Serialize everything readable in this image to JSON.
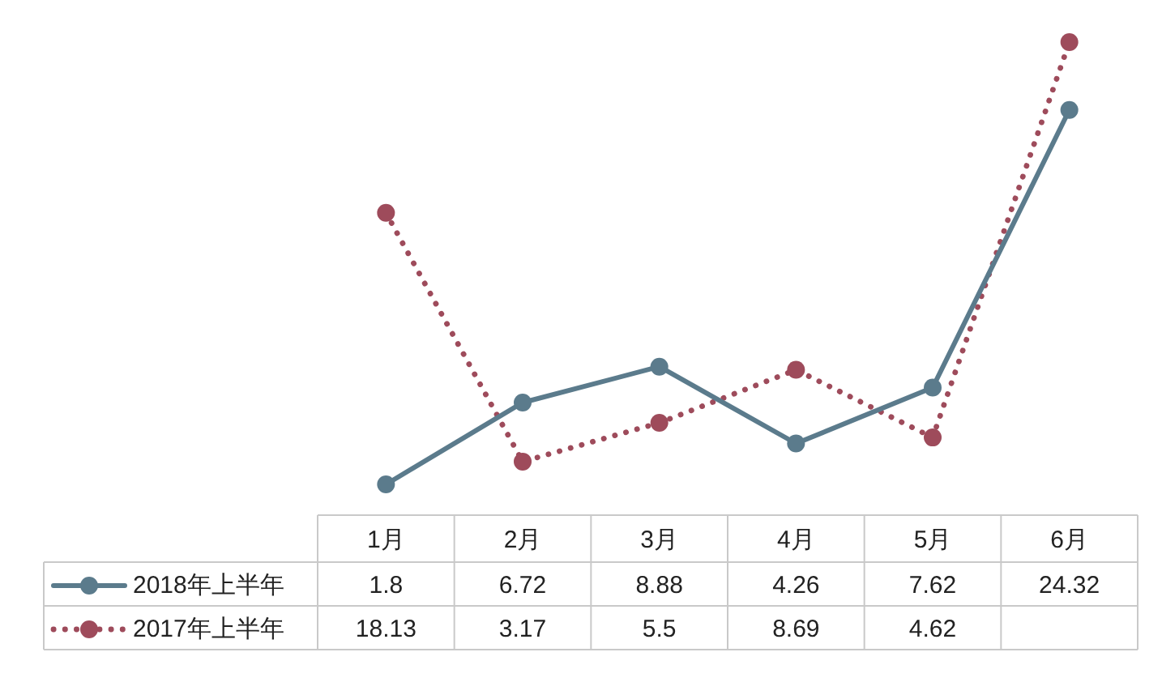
{
  "chart_data": {
    "type": "line",
    "categories": [
      "1月",
      "2月",
      "3月",
      "4月",
      "5月",
      "6月"
    ],
    "series": [
      {
        "name": "2018年上半年",
        "color": "#5b7b8c",
        "line_style": "solid",
        "values": [
          1.8,
          6.72,
          8.88,
          4.26,
          7.62,
          24.32
        ],
        "value_labels": [
          "1.8",
          "6.72",
          "8.88",
          "4.26",
          "7.62",
          "24.32"
        ]
      },
      {
        "name": "2017年上半年",
        "color": "#9e4b5b",
        "line_style": "dotted",
        "values": [
          18.13,
          3.17,
          5.5,
          8.69,
          4.62,
          28.4
        ],
        "value_labels": [
          "18.13",
          "3.17",
          "5.5",
          "8.69",
          "4.62",
          null
        ]
      }
    ],
    "marker": "circle",
    "legend": "bottom left"
  }
}
